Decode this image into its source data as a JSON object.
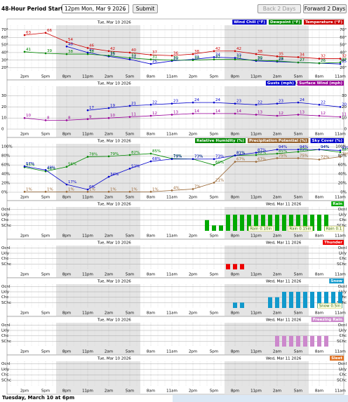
{
  "header": {
    "period_label": "48-Hour Period Starting:",
    "period_value": "12pm Mon, Mar 9 2026",
    "submit": "Submit",
    "back": "Back 2 Days",
    "forward": "Forward 2 Days"
  },
  "chart_data": [
    {
      "type": "line",
      "date_labels": [
        "Tue, Mar 10 2026"
      ],
      "categories": [
        "2pm",
        "5pm",
        "8pm",
        "11pm",
        "2am",
        "5am",
        "8am",
        "11am",
        "2pm",
        "5pm",
        "8pm",
        "11pm",
        "2am",
        "5am",
        "8am",
        "11am"
      ],
      "series": [
        {
          "name": "Wind Chill (°F)",
          "color": "#0000cc",
          "values": [
            null,
            null,
            48,
            40,
            35,
            31,
            25,
            29,
            31,
            34,
            33,
            29,
            28,
            27,
            26,
            25
          ]
        },
        {
          "name": "Dewpoint (°F)",
          "color": "#008800",
          "values": [
            41,
            39,
            38,
            38,
            36,
            33,
            31,
            30,
            30,
            31,
            31,
            30,
            29,
            27,
            26,
            27
          ]
        },
        {
          "name": "Temperature (°F)",
          "color": "#cc0000",
          "values": [
            63,
            66,
            54,
            46,
            42,
            40,
            37,
            36,
            38,
            42,
            42,
            38,
            35,
            34,
            32,
            32
          ]
        }
      ],
      "ylim": [
        15,
        75
      ],
      "yticks": [
        {
          "value": 20,
          "label": "20°"
        },
        {
          "value": 30,
          "label": "30°"
        },
        {
          "value": 40,
          "label": "40°"
        },
        {
          "value": 50,
          "label": "50°"
        },
        {
          "value": 60,
          "label": "60°"
        },
        {
          "value": 70,
          "label": "70°"
        }
      ],
      "grid": true
    },
    {
      "type": "line",
      "date_labels": [
        "Tue, Mar 10 2026",
        "Wed, Mar 11 2026"
      ],
      "categories": [
        "2pm",
        "5pm",
        "8pm",
        "11pm",
        "2am",
        "5am",
        "8am",
        "11am",
        "2pm",
        "5pm",
        "8pm",
        "11pm",
        "2am",
        "5am",
        "8am",
        "11am"
      ],
      "series": [
        {
          "name": "Gusts (mph)",
          "color": "#0000cc",
          "values": [
            null,
            null,
            null,
            17,
            19,
            21,
            22,
            23,
            24,
            24,
            23,
            22,
            23,
            24,
            22,
            20
          ]
        },
        {
          "name": "Surface Wind (mph)",
          "color": "#990099",
          "values": [
            10,
            8,
            8,
            9,
            10,
            11,
            12,
            13,
            14,
            14,
            14,
            13,
            12,
            13,
            12,
            11
          ]
        }
      ],
      "ylim": [
        0,
        38
      ],
      "yticks": [
        0,
        10,
        20,
        30
      ],
      "grid": true
    },
    {
      "type": "line",
      "date_labels": [
        "Tue, Mar 10 2026"
      ],
      "categories": [
        "2pm",
        "5pm",
        "8pm",
        "11pm",
        "2am",
        "5am",
        "8am",
        "11am",
        "2pm",
        "5pm",
        "8pm",
        "11pm",
        "2am",
        "5am",
        "8am",
        "11am"
      ],
      "series": [
        {
          "name": "Relative Humidity (%)",
          "color": "#008800",
          "values": [
            55,
            46,
            56,
            78,
            79,
            82,
            85,
            74,
            73,
            60,
            81,
            82,
            85,
            89,
            94,
            88
          ],
          "value_labels": [
            "55%",
            "46%",
            "56%",
            "78%",
            "79%",
            "82%",
            "85%",
            "74%",
            "73%",
            "60%",
            "81%",
            "82%",
            "85%",
            "89%",
            "94%",
            "88%"
          ]
        },
        {
          "name": "Precipitation Potential (%)",
          "color": "#996633",
          "values": [
            1,
            1,
            1,
            1,
            1,
            1,
            1,
            4,
            7,
            21,
            67,
            67,
            75,
            75,
            72,
            78
          ],
          "value_labels": [
            "1%",
            "1%",
            "1%",
            "1%",
            "1%",
            "1%",
            "1%",
            "4%",
            "7%",
            "21%",
            "67%",
            "67%",
            "75%",
            "75%",
            "72%",
            "78%"
          ]
        },
        {
          "name": "Sky Cover (%)",
          "color": "#0000cc",
          "values": [
            57,
            49,
            17,
            6,
            34,
            52,
            68,
            73,
            73,
            73,
            81,
            87,
            94,
            94,
            94,
            92
          ],
          "value_labels": [
            "57%",
            "49%",
            "17%",
            "6%",
            "34%",
            "52%",
            "68%",
            "73%",
            "73%",
            "73%",
            "81%",
            "87%",
            "94%",
            "94%",
            "94%",
            "92%"
          ]
        }
      ],
      "ylim": [
        0,
        105
      ],
      "yticks": [
        {
          "value": 0,
          "label": "0%"
        },
        {
          "value": 20,
          "label": "20%"
        },
        {
          "value": 40,
          "label": "40%"
        },
        {
          "value": 60,
          "label": "60%"
        },
        {
          "value": 80,
          "label": "80%"
        },
        {
          "value": 100,
          "label": "100%"
        }
      ],
      "grid": true
    },
    {
      "type": "bar",
      "date_labels": [
        "Tue, Mar 10 2026",
        "Wed, Mar 11 2026"
      ],
      "categories": [
        null,
        null,
        "2pm",
        null,
        null,
        "5pm",
        null,
        null,
        "8pm",
        null,
        null,
        "11pm",
        null,
        null,
        "2am",
        null,
        null,
        "5am",
        null,
        null,
        "8am",
        null,
        null,
        "11am",
        null,
        null,
        "2pm",
        null,
        null,
        "5pm",
        null,
        null,
        "8pm",
        null,
        null,
        "11pm",
        null,
        null,
        "2am",
        null,
        null,
        "5am",
        null,
        null,
        "8am",
        null,
        null,
        "11am"
      ],
      "series": [
        {
          "name": "Rain",
          "color": "#00aa00",
          "values": [
            null,
            null,
            null,
            null,
            null,
            null,
            null,
            null,
            null,
            null,
            null,
            null,
            null,
            null,
            null,
            null,
            null,
            null,
            null,
            null,
            null,
            null,
            null,
            null,
            null,
            null,
            null,
            null,
            2,
            1,
            1,
            3,
            3,
            3,
            3,
            3,
            3,
            3,
            3,
            3,
            3,
            3,
            3,
            3,
            3,
            3,
            null,
            null
          ]
        }
      ],
      "annotations": [
        "Rain 0.10in",
        "Rain 0.15in",
        "Rain 0.1"
      ],
      "ylim": [
        0,
        4.3
      ],
      "yticks": [
        {
          "value": 1,
          "label": "SChc"
        },
        {
          "value": 2,
          "label": "Chc"
        },
        {
          "value": 3,
          "label": "Lkly"
        },
        {
          "value": 4,
          "label": "Ocnl"
        }
      ],
      "grid": true
    },
    {
      "type": "bar",
      "date_labels": [
        "Tue, Mar 10 2026",
        "Wed, Mar 11 2026"
      ],
      "categories": [
        null,
        null,
        "2pm",
        null,
        null,
        "5pm",
        null,
        null,
        "8pm",
        null,
        null,
        "11pm",
        null,
        null,
        "2am",
        null,
        null,
        "5am",
        null,
        null,
        "8am",
        null,
        null,
        "11am",
        null,
        null,
        "2pm",
        null,
        null,
        "5pm",
        null,
        null,
        "8pm",
        null,
        null,
        "11pm",
        null,
        null,
        "2am",
        null,
        null,
        "5am",
        null,
        null,
        "8am",
        null,
        null,
        "11am"
      ],
      "series": [
        {
          "name": "Thunder",
          "color": "#ee0000",
          "values": [
            null,
            null,
            null,
            null,
            null,
            null,
            null,
            null,
            null,
            null,
            null,
            null,
            null,
            null,
            null,
            null,
            null,
            null,
            null,
            null,
            null,
            null,
            null,
            null,
            null,
            null,
            null,
            null,
            null,
            null,
            null,
            1,
            1,
            1,
            null,
            null,
            null,
            null,
            null,
            null,
            null,
            null,
            null,
            null,
            null,
            null,
            null,
            null
          ]
        }
      ],
      "ylim": [
        0,
        4.3
      ],
      "yticks": [
        {
          "value": 1,
          "label": "SChc"
        },
        {
          "value": 2,
          "label": "Chc"
        },
        {
          "value": 3,
          "label": "Lkly"
        },
        {
          "value": 4,
          "label": "Ocnl"
        }
      ],
      "grid": true
    },
    {
      "type": "bar",
      "date_labels": [
        "Tue, Mar 10 2026",
        "Wed, Mar 11 2026"
      ],
      "categories": [
        null,
        null,
        "2pm",
        null,
        null,
        "5pm",
        null,
        null,
        "8pm",
        null,
        null,
        "11pm",
        null,
        null,
        "2am",
        null,
        null,
        "5am",
        null,
        null,
        "8am",
        null,
        null,
        "11am",
        null,
        null,
        "2pm",
        null,
        null,
        "5pm",
        null,
        null,
        "8pm",
        null,
        null,
        "11pm",
        null,
        null,
        "2am",
        null,
        null,
        "5am",
        null,
        null,
        "8am",
        null,
        null,
        "11am"
      ],
      "series": [
        {
          "name": "Snow",
          "color": "#1199cc",
          "values": [
            null,
            null,
            null,
            null,
            null,
            null,
            null,
            null,
            null,
            null,
            null,
            null,
            null,
            null,
            null,
            null,
            null,
            null,
            null,
            null,
            null,
            null,
            null,
            null,
            null,
            null,
            null,
            null,
            null,
            null,
            null,
            null,
            1,
            1,
            null,
            null,
            null,
            2,
            2,
            3,
            3,
            3,
            3,
            3,
            3,
            3,
            3,
            3
          ]
        }
      ],
      "annotations": [
        "Snow 0.5in"
      ],
      "ylim": [
        0,
        4.3
      ],
      "yticks": [
        {
          "value": 1,
          "label": "SChc"
        },
        {
          "value": 2,
          "label": "Chc"
        },
        {
          "value": 3,
          "label": "Lkly"
        },
        {
          "value": 4,
          "label": "Ocnl"
        }
      ],
      "grid": true
    },
    {
      "type": "bar",
      "date_labels": [
        "Tue, Mar 10 2026",
        "Wed, Mar 11 2026"
      ],
      "categories": [
        null,
        null,
        "2pm",
        null,
        null,
        "5pm",
        null,
        null,
        "8pm",
        null,
        null,
        "11pm",
        null,
        null,
        "2am",
        null,
        null,
        "5am",
        null,
        null,
        "8am",
        null,
        null,
        "11am",
        null,
        null,
        "2pm",
        null,
        null,
        "5pm",
        null,
        null,
        "8pm",
        null,
        null,
        "11pm",
        null,
        null,
        "2am",
        null,
        null,
        "5am",
        null,
        null,
        "8am",
        null,
        null,
        "11am"
      ],
      "series": [
        {
          "name": "Freezing Rain",
          "color": "#cc88cc",
          "values": [
            null,
            null,
            null,
            null,
            null,
            null,
            null,
            null,
            null,
            null,
            null,
            null,
            null,
            null,
            null,
            null,
            null,
            null,
            null,
            null,
            null,
            null,
            null,
            null,
            null,
            null,
            null,
            null,
            null,
            null,
            null,
            null,
            null,
            null,
            null,
            null,
            null,
            null,
            2,
            2,
            2,
            2,
            2,
            2,
            2,
            2,
            null,
            null
          ]
        }
      ],
      "ylim": [
        0,
        4.3
      ],
      "yticks": [
        {
          "value": 1,
          "label": "SChc"
        },
        {
          "value": 2,
          "label": "Chc"
        },
        {
          "value": 3,
          "label": "Lkly"
        },
        {
          "value": 4,
          "label": "Ocnl"
        }
      ],
      "grid": true
    },
    {
      "type": "bar",
      "date_labels": [
        "Tue, Mar 10 2026",
        "Wed, Mar 11 2026"
      ],
      "categories": [
        null,
        null,
        "2pm",
        null,
        null,
        "5pm",
        null,
        null,
        "8pm",
        null,
        null,
        "11pm",
        null,
        null,
        "2am",
        null,
        null,
        "5am",
        null,
        null,
        "8am",
        null,
        null,
        "11am",
        null,
        null,
        "2pm",
        null,
        null,
        "5pm",
        null,
        null,
        "8pm",
        null,
        null,
        "11pm",
        null,
        null,
        "2am",
        null,
        null,
        "5am",
        null,
        null,
        "8am",
        null,
        null,
        "11am"
      ],
      "series": [
        {
          "name": "Sleet",
          "color": "#e07020",
          "values": [
            null,
            null,
            null,
            null,
            null,
            null,
            null,
            null,
            null,
            null,
            null,
            null,
            null,
            null,
            null,
            null,
            null,
            null,
            null,
            null,
            null,
            null,
            null,
            null,
            null,
            null,
            null,
            null,
            null,
            null,
            null,
            null,
            null,
            null,
            null,
            null,
            null,
            null,
            null,
            null,
            null,
            null,
            null,
            null,
            null,
            null,
            null,
            null
          ]
        }
      ],
      "ylim": [
        0,
        4.3
      ],
      "yticks": [
        {
          "value": 1,
          "label": "SChc"
        },
        {
          "value": 2,
          "label": "Chc"
        },
        {
          "value": 3,
          "label": "Lkly"
        },
        {
          "value": 4,
          "label": "Ocnl"
        }
      ],
      "grid": true
    }
  ],
  "footer": "Tuesday, March 10 at 6pm"
}
